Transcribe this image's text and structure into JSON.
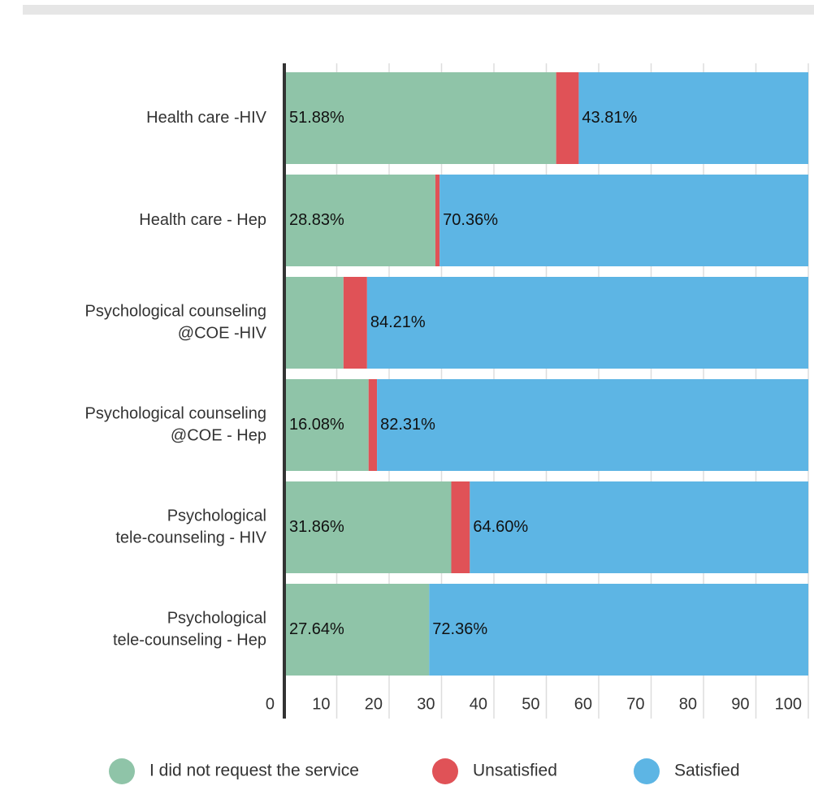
{
  "chart_data": {
    "type": "stacked-barh",
    "categories": [
      [
        "Health care -HIV"
      ],
      [
        "Health care - Hep"
      ],
      [
        "Psychological counseling",
        "@COE -HIV"
      ],
      [
        "Psychological counseling",
        "@COE - Hep"
      ],
      [
        "Psychological",
        "tele-counseling - HIV"
      ],
      [
        "Psychological",
        "tele-counseling - Hep"
      ]
    ],
    "series": [
      {
        "name": "I did not request the service",
        "color": "#8fc4a8",
        "values": [
          51.88,
          28.83,
          11.29,
          16.08,
          31.86,
          27.64
        ],
        "value_labels": [
          "51.88%",
          "28.83%",
          null,
          "16.08%",
          "31.86%",
          "27.64%"
        ]
      },
      {
        "name": "Unsatisfied",
        "color": "#e05257",
        "values": [
          4.31,
          0.81,
          4.5,
          1.61,
          3.54,
          0
        ]
      },
      {
        "name": "Satisfied",
        "color": "#5db5e4",
        "values": [
          43.81,
          70.36,
          84.21,
          82.31,
          64.6,
          72.36
        ],
        "value_labels": [
          "43.81%",
          "70.36%",
          "84.21%",
          "82.31%",
          "64.60%",
          "72.36%"
        ]
      }
    ],
    "xlim": [
      0,
      100
    ],
    "xticks": [
      0,
      10,
      20,
      30,
      40,
      50,
      60,
      70,
      80,
      90,
      100
    ],
    "grid": true,
    "legend": "bottom"
  }
}
